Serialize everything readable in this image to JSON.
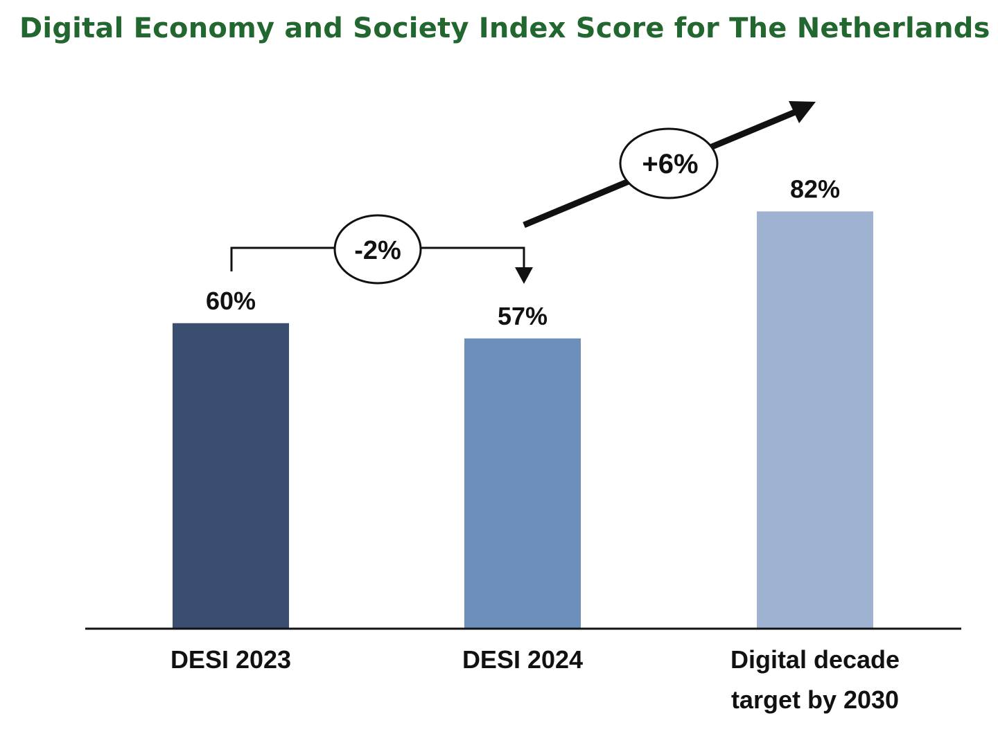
{
  "title": "Digital Economy and Society Index Score for The Netherlands",
  "colors": {
    "title": "#22672f",
    "bars": [
      "#3a4f6f",
      "#6e8fba",
      "#9fb2d1"
    ],
    "axis": "#111111",
    "annotation": "#111111"
  },
  "chart_data": {
    "type": "bar",
    "title": "Digital Economy and Society Index Score for The Netherlands",
    "categories": [
      "DESI 2023",
      "DESI 2024",
      "Digital decade target by 2030"
    ],
    "category_lines": [
      [
        "DESI 2023"
      ],
      [
        "DESI 2024"
      ],
      [
        "Digital decade",
        "target by 2030"
      ]
    ],
    "values": [
      60,
      57,
      82
    ],
    "value_labels": [
      "60%",
      "57%",
      "82%"
    ],
    "unit": "%",
    "ylim": [
      0,
      86
    ],
    "grid": false,
    "xlabel": "",
    "ylabel": "",
    "annotations": [
      {
        "label": "-2%",
        "type": "bracket-arrow",
        "from_category": 0,
        "to_category": 1
      },
      {
        "label": "+6%",
        "type": "upward-arrow",
        "from_category": 1,
        "to_category": 2
      }
    ]
  }
}
